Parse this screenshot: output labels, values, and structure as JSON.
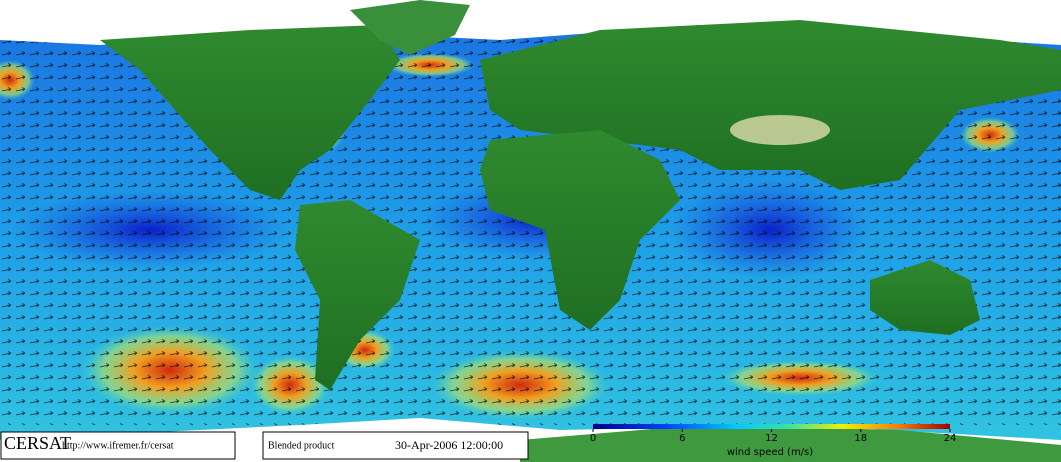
{
  "logo": "CERSAT",
  "url": "http://www.ifremer.fr/cersat",
  "product": "Blended product",
  "date": "30-Apr-2006 12:00:00",
  "colorbar": {
    "label": "wind speed (m/s)",
    "lim": [
      0,
      24
    ],
    "ticks": [
      0,
      6,
      12,
      18,
      24
    ]
  }
}
